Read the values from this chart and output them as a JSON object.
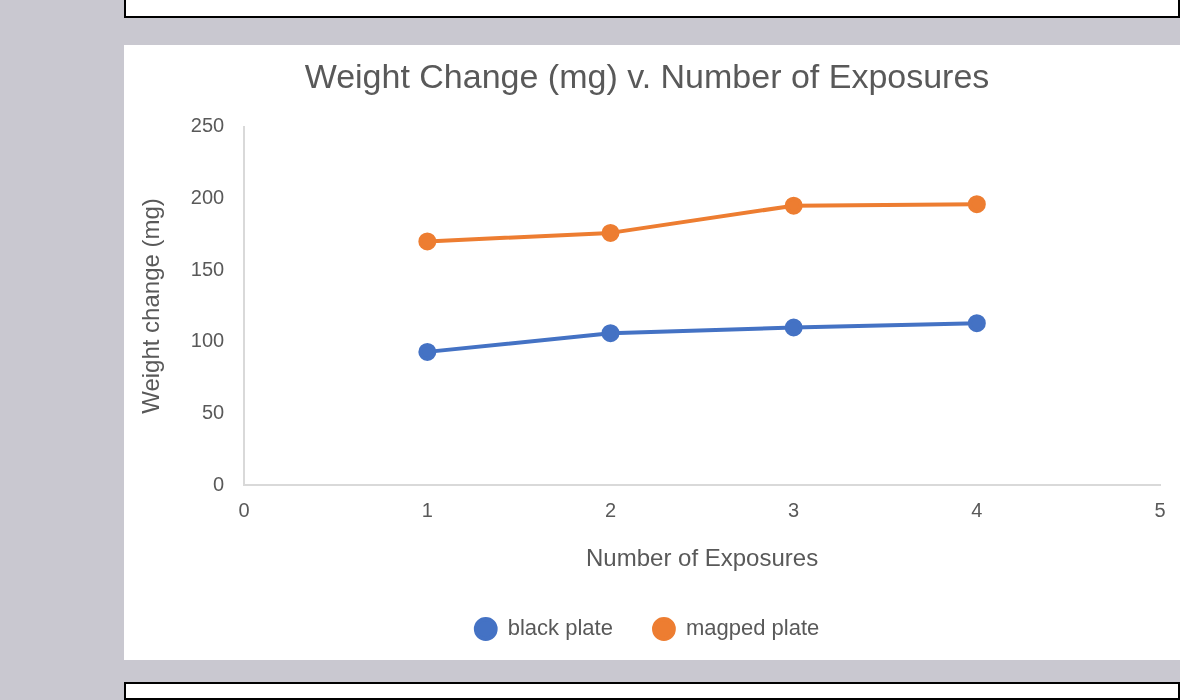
{
  "chart_data": {
    "type": "line",
    "title": "Weight Change (mg) v. Number of Exposures",
    "xlabel": "Number of Exposures",
    "ylabel": "Weight change (mg)",
    "x": [
      1,
      2,
      3,
      4
    ],
    "series": [
      {
        "name": "black plate",
        "color": "#4472c4",
        "values": [
          93,
          106,
          110,
          113
        ]
      },
      {
        "name": "magped plate",
        "color": "#ed7d31",
        "values": [
          170,
          176,
          195,
          196
        ]
      }
    ],
    "xlim": [
      0,
      5
    ],
    "xticks": [
      0,
      1,
      2,
      3,
      4,
      5
    ],
    "ylim": [
      0,
      250
    ],
    "yticks": [
      0,
      50,
      100,
      150,
      200,
      250
    ],
    "grid": false,
    "legend": "bottom",
    "marker": "circle",
    "line_style": "solid"
  }
}
